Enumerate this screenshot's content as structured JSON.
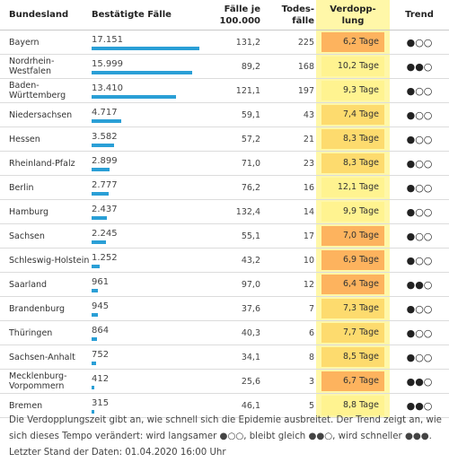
{
  "headers": {
    "land": "Bundesland",
    "cases": "Bestätigte Fälle",
    "per100k_line1": "Fälle je",
    "per100k_line2": "100.000",
    "deaths_line1": "Todes-",
    "deaths_line2": "fälle",
    "doubling_line1": "Verdopp-",
    "doubling_line2": "lung",
    "trend": "Trend"
  },
  "colors": {
    "bar": "#2a9fd6",
    "column_highlight": "#fff7a8",
    "doubling_fast": "#fdb35e",
    "doubling_medium": "#fddb6e",
    "doubling_slow": "#fff390"
  },
  "max_cases": 17151,
  "rows": [
    {
      "land": "Bayern",
      "cases": "17.151",
      "cases_value": 17151,
      "per100k": "131,2",
      "deaths": "225",
      "doubling": "6,2 Tage",
      "doubling_class": "fast",
      "trend": "●○○"
    },
    {
      "land": "Nordrhein-Westfalen",
      "cases": "15.999",
      "cases_value": 15999,
      "per100k": "89,2",
      "deaths": "168",
      "doubling": "10,2 Tage",
      "doubling_class": "slow",
      "trend": "●●○"
    },
    {
      "land": "Baden-Württemberg",
      "cases": "13.410",
      "cases_value": 13410,
      "per100k": "121,1",
      "deaths": "197",
      "doubling": "9,3 Tage",
      "doubling_class": "slow",
      "trend": "●○○"
    },
    {
      "land": "Niedersachsen",
      "cases": "4.717",
      "cases_value": 4717,
      "per100k": "59,1",
      "deaths": "43",
      "doubling": "7,4 Tage",
      "doubling_class": "medium",
      "trend": "●○○"
    },
    {
      "land": "Hessen",
      "cases": "3.582",
      "cases_value": 3582,
      "per100k": "57,2",
      "deaths": "21",
      "doubling": "8,3 Tage",
      "doubling_class": "medium",
      "trend": "●○○"
    },
    {
      "land": "Rheinland-Pfalz",
      "cases": "2.899",
      "cases_value": 2899,
      "per100k": "71,0",
      "deaths": "23",
      "doubling": "8,3 Tage",
      "doubling_class": "medium",
      "trend": "●○○"
    },
    {
      "land": "Berlin",
      "cases": "2.777",
      "cases_value": 2777,
      "per100k": "76,2",
      "deaths": "16",
      "doubling": "12,1 Tage",
      "doubling_class": "slow",
      "trend": "●○○"
    },
    {
      "land": "Hamburg",
      "cases": "2.437",
      "cases_value": 2437,
      "per100k": "132,4",
      "deaths": "14",
      "doubling": "9,9 Tage",
      "doubling_class": "slow",
      "trend": "●○○"
    },
    {
      "land": "Sachsen",
      "cases": "2.245",
      "cases_value": 2245,
      "per100k": "55,1",
      "deaths": "17",
      "doubling": "7,0 Tage",
      "doubling_class": "fast",
      "trend": "●○○"
    },
    {
      "land": "Schleswig-Holstein",
      "cases": "1.252",
      "cases_value": 1252,
      "per100k": "43,2",
      "deaths": "10",
      "doubling": "6,9 Tage",
      "doubling_class": "fast",
      "trend": "●○○"
    },
    {
      "land": "Saarland",
      "cases": "961",
      "cases_value": 961,
      "per100k": "97,0",
      "deaths": "12",
      "doubling": "6,4 Tage",
      "doubling_class": "fast",
      "trend": "●●○"
    },
    {
      "land": "Brandenburg",
      "cases": "945",
      "cases_value": 945,
      "per100k": "37,6",
      "deaths": "7",
      "doubling": "7,3 Tage",
      "doubling_class": "medium",
      "trend": "●○○"
    },
    {
      "land": "Thüringen",
      "cases": "864",
      "cases_value": 864,
      "per100k": "40,3",
      "deaths": "6",
      "doubling": "7,7 Tage",
      "doubling_class": "medium",
      "trend": "●○○"
    },
    {
      "land": "Sachsen-Anhalt",
      "cases": "752",
      "cases_value": 752,
      "per100k": "34,1",
      "deaths": "8",
      "doubling": "8,5 Tage",
      "doubling_class": "medium",
      "trend": "●○○"
    },
    {
      "land": "Mecklenburg-Vorpommern",
      "cases": "412",
      "cases_value": 412,
      "per100k": "25,6",
      "deaths": "3",
      "doubling": "6,7 Tage",
      "doubling_class": "fast",
      "trend": "●●○"
    },
    {
      "land": "Bremen",
      "cases": "315",
      "cases_value": 315,
      "per100k": "46,1",
      "deaths": "5",
      "doubling": "8,8 Tage",
      "doubling_class": "slow",
      "trend": "●●○"
    }
  ],
  "footnote": "Die Verdopplungszeit gibt an, wie schnell sich die Epidemie ausbreitet. Der Trend zeigt an, wie sich dieses Tempo verändert: wird langsamer ●○○, bleibt gleich ●●○, wird schneller ●●●. Letzter Stand der Daten: 01.04.2020 16:00 Uhr"
}
